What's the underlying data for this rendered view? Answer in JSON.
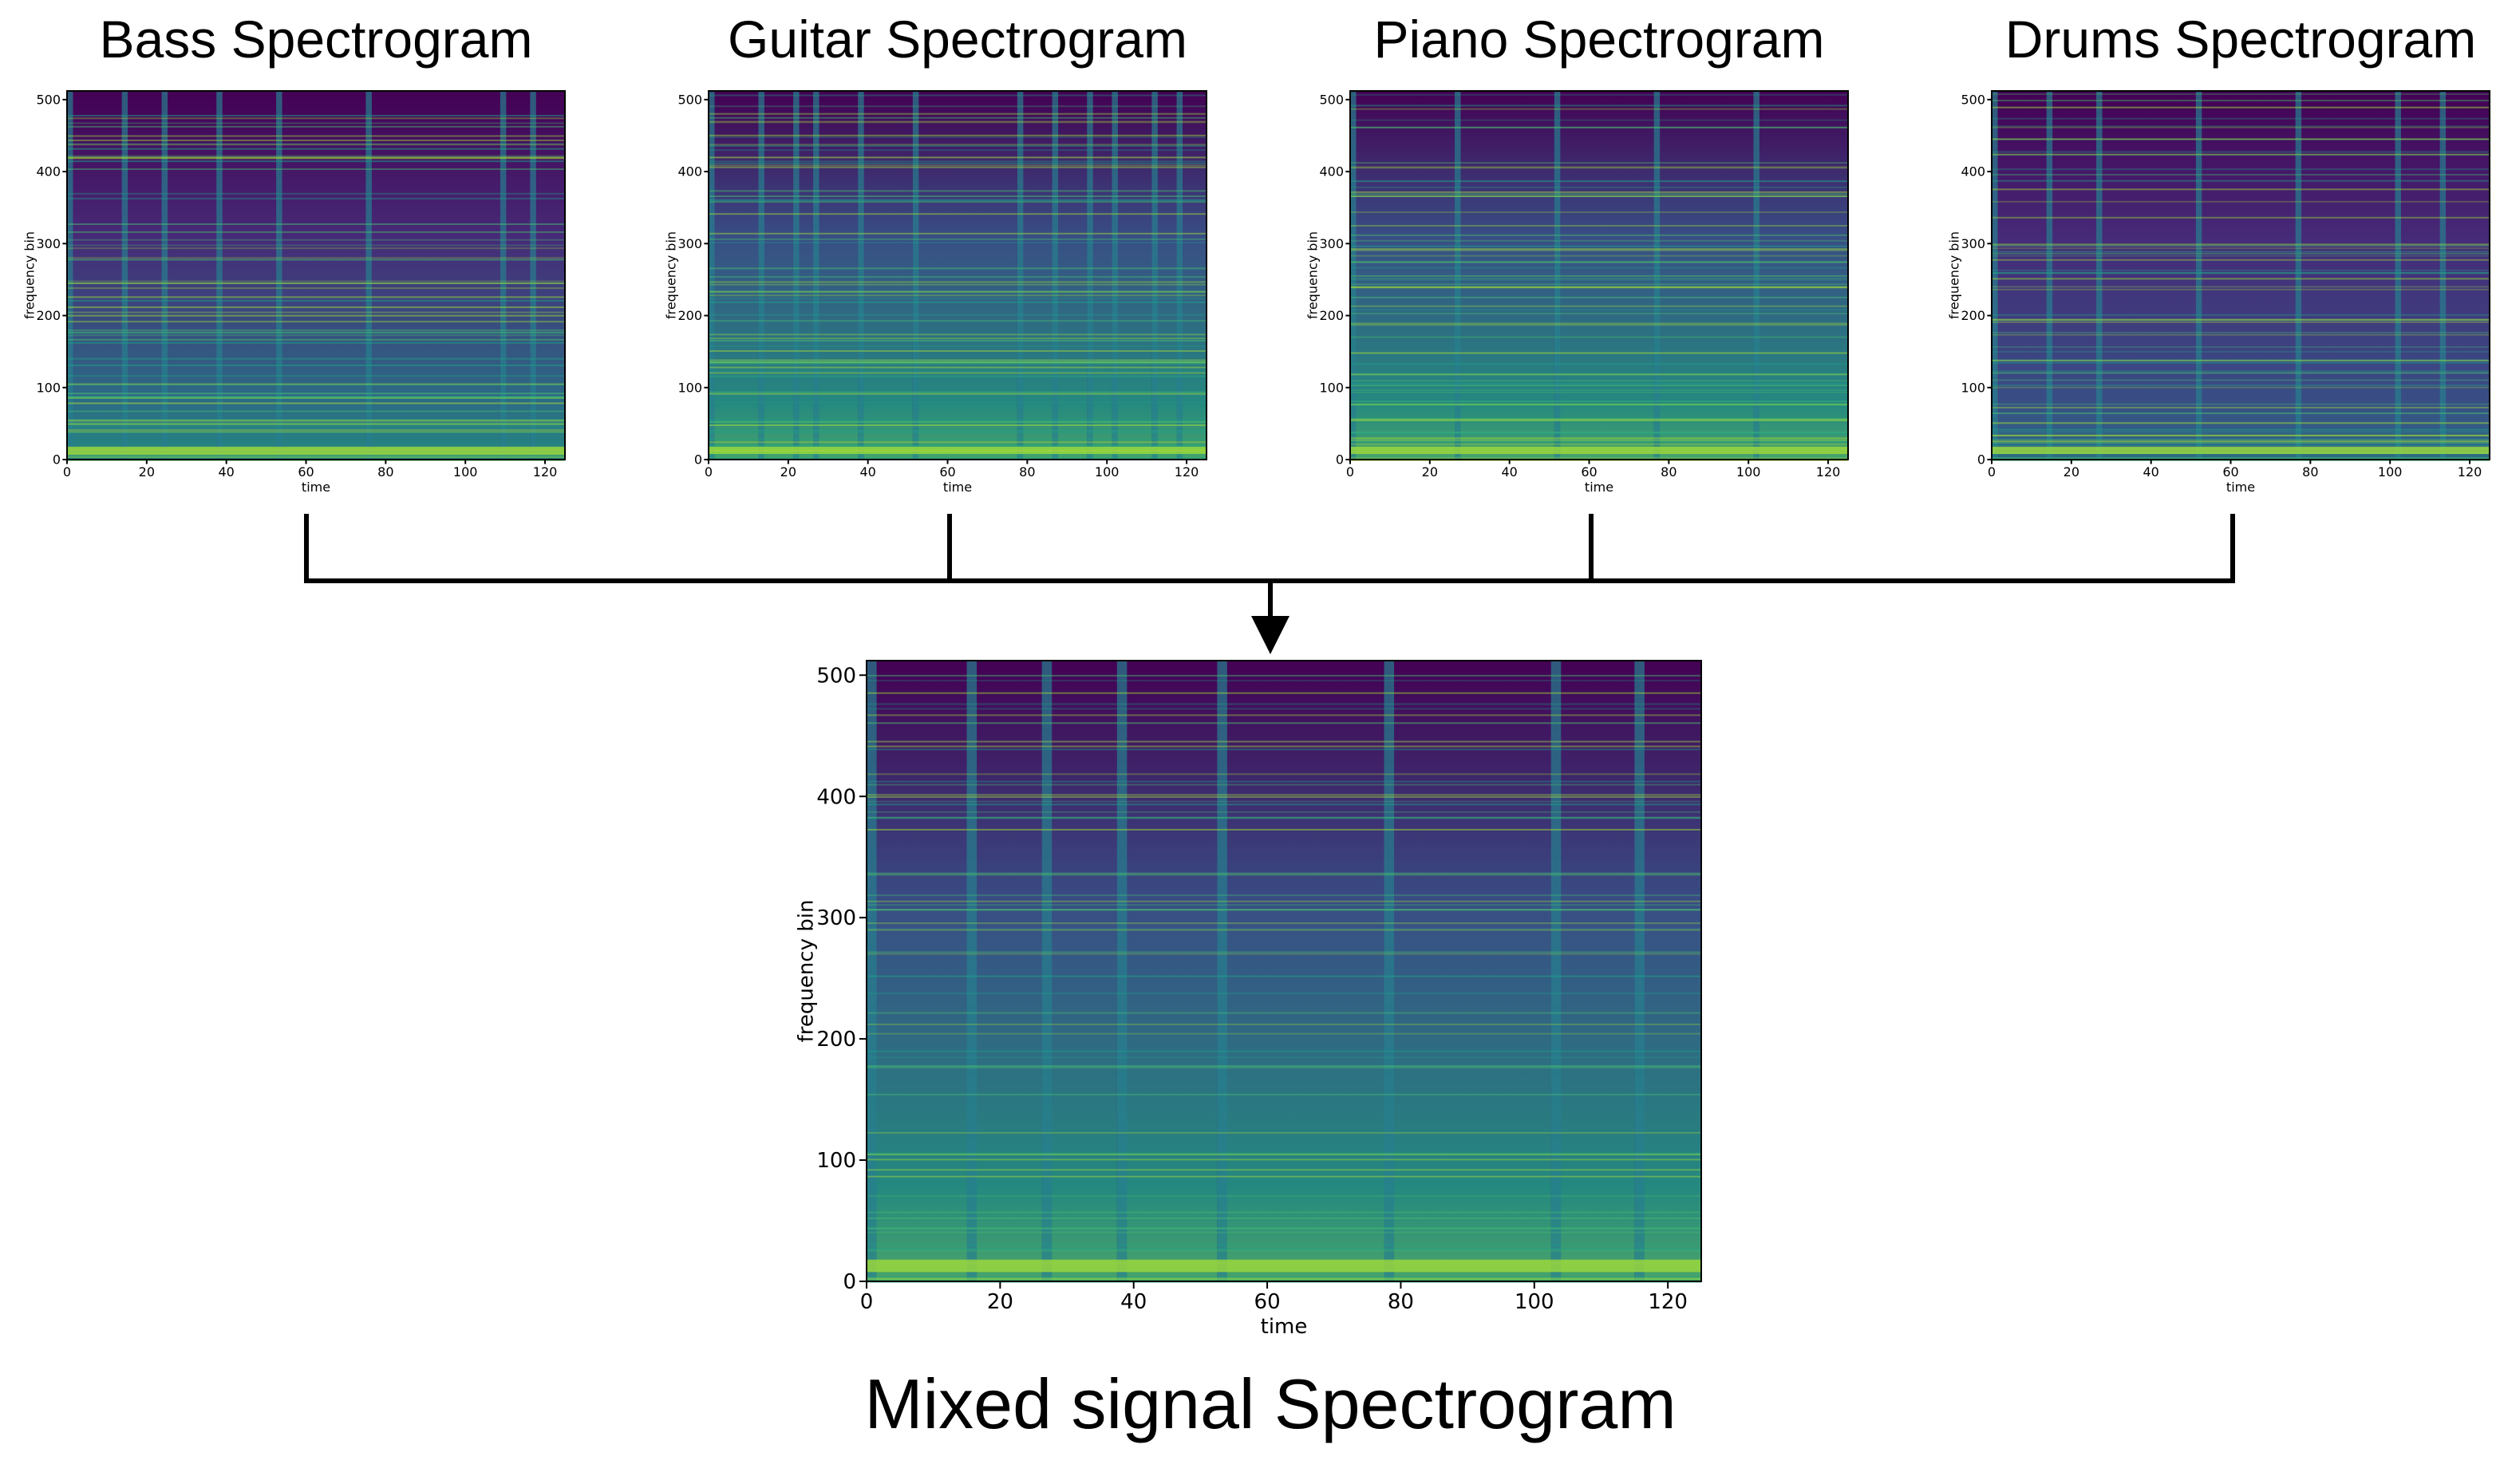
{
  "diagram": {
    "title": "Mixed signal Spectrogram",
    "panels": [
      {
        "title": "Bass Spectrogram",
        "xlabel": "time",
        "ylabel": "frequency bin",
        "xlim": [
          0,
          125
        ],
        "ylim": [
          0,
          512
        ],
        "xticks": [
          0,
          20,
          40,
          60,
          80,
          100,
          120
        ],
        "yticks": [
          0,
          100,
          200,
          300,
          400,
          500
        ]
      },
      {
        "title": "Guitar Spectrogram",
        "xlabel": "time",
        "ylabel": "frequency bin",
        "xlim": [
          0,
          125
        ],
        "ylim": [
          0,
          512
        ],
        "xticks": [
          0,
          20,
          40,
          60,
          80,
          100,
          120
        ],
        "yticks": [
          0,
          100,
          200,
          300,
          400,
          500
        ]
      },
      {
        "title": "Piano Spectrogram",
        "xlabel": "time",
        "ylabel": "frequency bin",
        "xlim": [
          0,
          125
        ],
        "ylim": [
          0,
          512
        ],
        "xticks": [
          0,
          20,
          40,
          60,
          80,
          100,
          120
        ],
        "yticks": [
          0,
          100,
          200,
          300,
          400,
          500
        ]
      },
      {
        "title": "Drums Spectrogram",
        "xlabel": "time",
        "ylabel": "frequency bin",
        "xlim": [
          0,
          125
        ],
        "ylim": [
          0,
          512
        ],
        "xticks": [
          0,
          20,
          40,
          60,
          80,
          100,
          120
        ],
        "yticks": [
          0,
          100,
          200,
          300,
          400,
          500
        ]
      }
    ],
    "mixed": {
      "xlabel": "time",
      "ylabel": "frequency bin",
      "xlim": [
        0,
        125
      ],
      "ylim": [
        0,
        512
      ],
      "xticks": [
        0,
        20,
        40,
        60,
        80,
        100,
        120
      ],
      "yticks": [
        0,
        100,
        200,
        300,
        400,
        500
      ]
    }
  }
}
